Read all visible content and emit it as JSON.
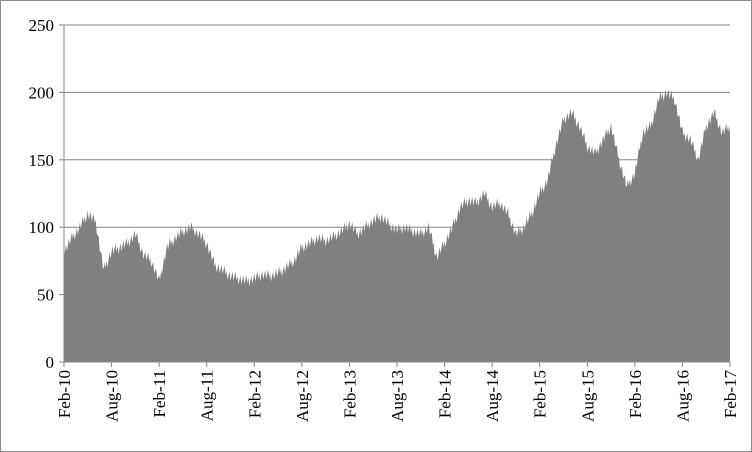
{
  "chart_data": {
    "type": "area",
    "title": "",
    "xlabel": "",
    "ylabel": "",
    "ylim": [
      0,
      250
    ],
    "yticks": [
      "0",
      "50",
      "100",
      "150",
      "200",
      "250"
    ],
    "grid": true,
    "legend": "none",
    "color": "#808080",
    "x_tick_labels": [
      "Feb-10",
      "Aug-10",
      "Feb-11",
      "Aug-11",
      "Feb-12",
      "Aug-12",
      "Feb-13",
      "Aug-13",
      "Feb-14",
      "Aug-14",
      "Feb-15",
      "Aug-15",
      "Feb-16",
      "Aug-16",
      "Feb-17"
    ],
    "x_start": "Feb-10",
    "x_frequency": "monthly",
    "values": [
      82,
      92,
      100,
      110,
      104,
      68,
      82,
      85,
      88,
      95,
      80,
      75,
      60,
      85,
      92,
      97,
      100,
      95,
      88,
      72,
      68,
      64,
      62,
      60,
      62,
      65,
      64,
      66,
      70,
      75,
      85,
      88,
      92,
      90,
      93,
      97,
      103,
      95,
      100,
      105,
      108,
      102,
      98,
      100,
      97,
      95,
      100,
      78,
      88,
      100,
      115,
      120,
      118,
      125,
      115,
      118,
      110,
      95,
      100,
      110,
      125,
      135,
      160,
      180,
      185,
      175,
      160,
      155,
      165,
      175,
      150,
      130,
      140,
      170,
      175,
      195,
      200,
      195,
      170,
      165,
      150,
      175,
      185,
      170,
      175
    ]
  }
}
